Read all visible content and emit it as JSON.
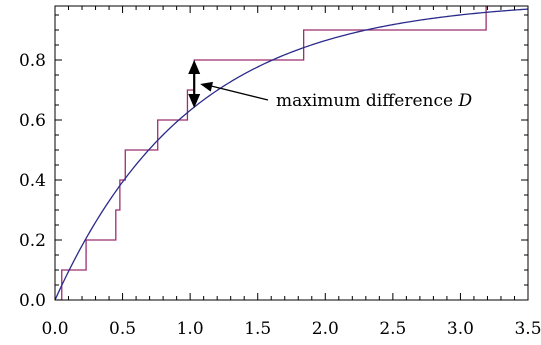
{
  "chart_data": {
    "type": "line",
    "title": "",
    "xlabel": "",
    "ylabel": "",
    "xlim": [
      0,
      3.5
    ],
    "ylim": [
      0,
      0.98
    ],
    "grid": false,
    "x_ticks": [
      0.0,
      0.5,
      1.0,
      1.5,
      2.0,
      2.5,
      3.0,
      3.5
    ],
    "x_tick_labels": [
      "0.0",
      "0.5",
      "1.0",
      "1.5",
      "2.0",
      "2.5",
      "3.0",
      "3.5"
    ],
    "y_ticks": [
      0.0,
      0.2,
      0.4,
      0.6,
      0.8
    ],
    "y_tick_labels": [
      "0.0",
      "0.2",
      "0.4",
      "0.6",
      "0.8"
    ],
    "series": [
      {
        "kind": "step",
        "color": "#9c2e6e",
        "x": [
          0.02,
          0.05,
          0.23,
          0.45,
          0.48,
          0.52,
          0.76,
          0.98,
          1.03,
          1.84,
          3.19
        ],
        "y": [
          0.0,
          0.1,
          0.2,
          0.3,
          0.4,
          0.5,
          0.6,
          0.7,
          0.8,
          0.9,
          1.0
        ]
      },
      {
        "kind": "curve",
        "color": "#2b2b8c",
        "function": "1 - exp(-x)",
        "x_range": [
          0.0,
          3.5
        ]
      }
    ],
    "annotations": [
      {
        "text": "maximum difference",
        "symbol": "D",
        "x": 1.03,
        "y_range": [
          0.64,
          0.8
        ],
        "arrow_color": "#000000"
      }
    ]
  }
}
